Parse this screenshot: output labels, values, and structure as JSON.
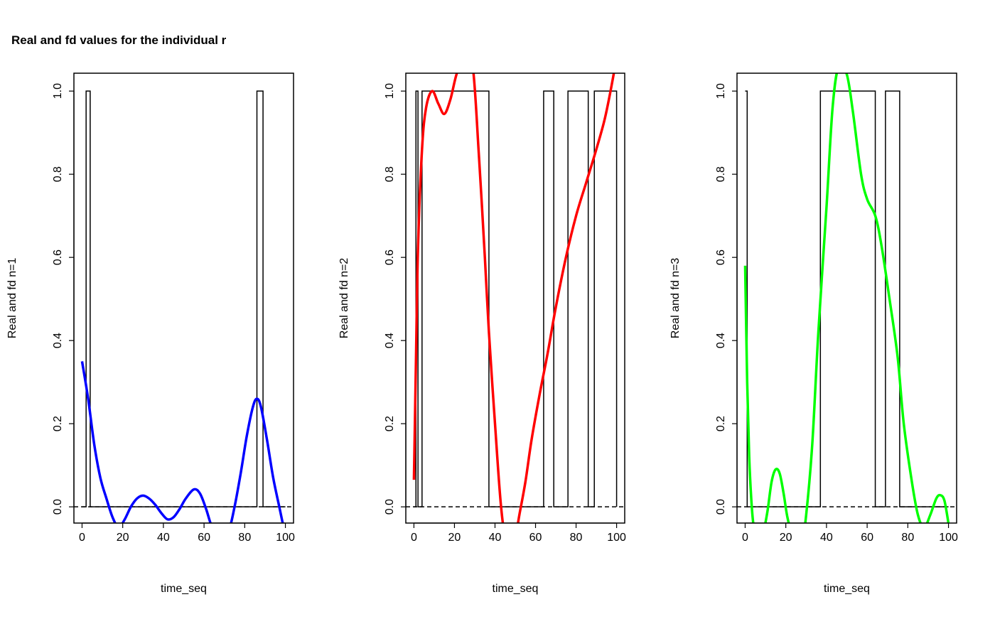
{
  "chart_data": {
    "title": "Real and fd values for the individual r",
    "panels": [
      {
        "type": "line",
        "xlabel": "time_seq",
        "ylabel": "Real and fd n=1",
        "xlim": [
          -4,
          104
        ],
        "ylim": [
          -0.039,
          1.043
        ],
        "xticks": [
          "0",
          "20",
          "40",
          "60",
          "80",
          "100"
        ],
        "yticks": [
          "0.0",
          "0.2",
          "0.4",
          "0.6",
          "0.8",
          "1.0"
        ],
        "real_on_intervals": [
          [
            2,
            4
          ],
          [
            86,
            89
          ]
        ],
        "fd_color": "#0000ff",
        "fd": [
          [
            0,
            0.35
          ],
          [
            3,
            0.26
          ],
          [
            6,
            0.15
          ],
          [
            9,
            0.07
          ],
          [
            12,
            0.02
          ],
          [
            15,
            -0.025
          ],
          [
            18,
            -0.05
          ],
          [
            21,
            -0.03
          ],
          [
            24,
            0.0
          ],
          [
            27,
            0.02
          ],
          [
            30,
            0.027
          ],
          [
            33,
            0.02
          ],
          [
            36,
            0.005
          ],
          [
            39,
            -0.015
          ],
          [
            42,
            -0.03
          ],
          [
            45,
            -0.025
          ],
          [
            48,
            -0.005
          ],
          [
            51,
            0.02
          ],
          [
            55,
            0.042
          ],
          [
            58,
            0.032
          ],
          [
            61,
            -0.005
          ],
          [
            64,
            -0.05
          ],
          [
            68,
            -0.08
          ],
          [
            72,
            -0.06
          ],
          [
            75,
            0.0
          ],
          [
            78,
            0.08
          ],
          [
            81,
            0.17
          ],
          [
            84,
            0.24
          ],
          [
            86,
            0.26
          ],
          [
            88,
            0.24
          ],
          [
            91,
            0.16
          ],
          [
            94,
            0.07
          ],
          [
            97,
            0.0
          ],
          [
            100,
            -0.07
          ]
        ]
      },
      {
        "type": "line",
        "xlabel": "time_seq",
        "ylabel": "Real and fd n=2",
        "xlim": [
          -4,
          104
        ],
        "ylim": [
          -0.039,
          1.043
        ],
        "xticks": [
          "0",
          "20",
          "40",
          "60",
          "80",
          "100"
        ],
        "yticks": [
          "0.0",
          "0.2",
          "0.4",
          "0.6",
          "0.8",
          "1.0"
        ],
        "real_on_intervals": [
          [
            1,
            2
          ],
          [
            4,
            37
          ],
          [
            64,
            69
          ],
          [
            76,
            86
          ],
          [
            89,
            100
          ]
        ],
        "fd_color": "#ff0000",
        "fd": [
          [
            0,
            0.065
          ],
          [
            1,
            0.35
          ],
          [
            2,
            0.62
          ],
          [
            4,
            0.86
          ],
          [
            6,
            0.96
          ],
          [
            9,
            1.0
          ],
          [
            12,
            0.97
          ],
          [
            15,
            0.945
          ],
          [
            18,
            0.98
          ],
          [
            21,
            1.04
          ],
          [
            25,
            1.09
          ],
          [
            29,
            1.06
          ],
          [
            32,
            0.85
          ],
          [
            35,
            0.6
          ],
          [
            37,
            0.42
          ],
          [
            40,
            0.2
          ],
          [
            43,
            0.0
          ],
          [
            46,
            -0.1
          ],
          [
            49,
            -0.1
          ],
          [
            52,
            -0.02
          ],
          [
            55,
            0.06
          ],
          [
            58,
            0.16
          ],
          [
            62,
            0.27
          ],
          [
            66,
            0.37
          ],
          [
            70,
            0.48
          ],
          [
            75,
            0.6
          ],
          [
            80,
            0.7
          ],
          [
            85,
            0.78
          ],
          [
            90,
            0.86
          ],
          [
            94,
            0.93
          ],
          [
            97,
            1.0
          ],
          [
            100,
            1.08
          ]
        ]
      },
      {
        "type": "line",
        "xlabel": "time_seq",
        "ylabel": "Real and fd n=3",
        "xlim": [
          -4,
          104
        ],
        "ylim": [
          -0.039,
          1.043
        ],
        "xticks": [
          "0",
          "20",
          "40",
          "60",
          "80",
          "100"
        ],
        "yticks": [
          "0.0",
          "0.2",
          "0.4",
          "0.6",
          "0.8",
          "1.0"
        ],
        "real_on_intervals": [
          [
            0,
            1
          ],
          [
            37,
            64
          ],
          [
            69,
            76
          ]
        ],
        "fd_color": "#00ff00",
        "fd": [
          [
            0,
            0.58
          ],
          [
            1,
            0.3
          ],
          [
            2,
            0.12
          ],
          [
            3,
            0.02
          ],
          [
            4,
            -0.04
          ],
          [
            6,
            -0.1
          ],
          [
            9,
            -0.06
          ],
          [
            11,
            -0.01
          ],
          [
            13,
            0.06
          ],
          [
            15,
            0.09
          ],
          [
            17,
            0.08
          ],
          [
            19,
            0.03
          ],
          [
            21,
            -0.03
          ],
          [
            25,
            -0.1
          ],
          [
            28,
            -0.08
          ],
          [
            30,
            -0.02
          ],
          [
            33,
            0.15
          ],
          [
            36,
            0.42
          ],
          [
            40,
            0.72
          ],
          [
            43,
            0.96
          ],
          [
            46,
            1.06
          ],
          [
            50,
            1.04
          ],
          [
            53,
            0.95
          ],
          [
            57,
            0.8
          ],
          [
            60,
            0.74
          ],
          [
            64,
            0.7
          ],
          [
            67,
            0.63
          ],
          [
            71,
            0.5
          ],
          [
            75,
            0.36
          ],
          [
            78,
            0.2
          ],
          [
            82,
            0.06
          ],
          [
            85,
            -0.02
          ],
          [
            88,
            -0.05
          ],
          [
            91,
            -0.02
          ],
          [
            94,
            0.02
          ],
          [
            96,
            0.028
          ],
          [
            98,
            0.015
          ],
          [
            100,
            -0.04
          ]
        ]
      }
    ]
  }
}
